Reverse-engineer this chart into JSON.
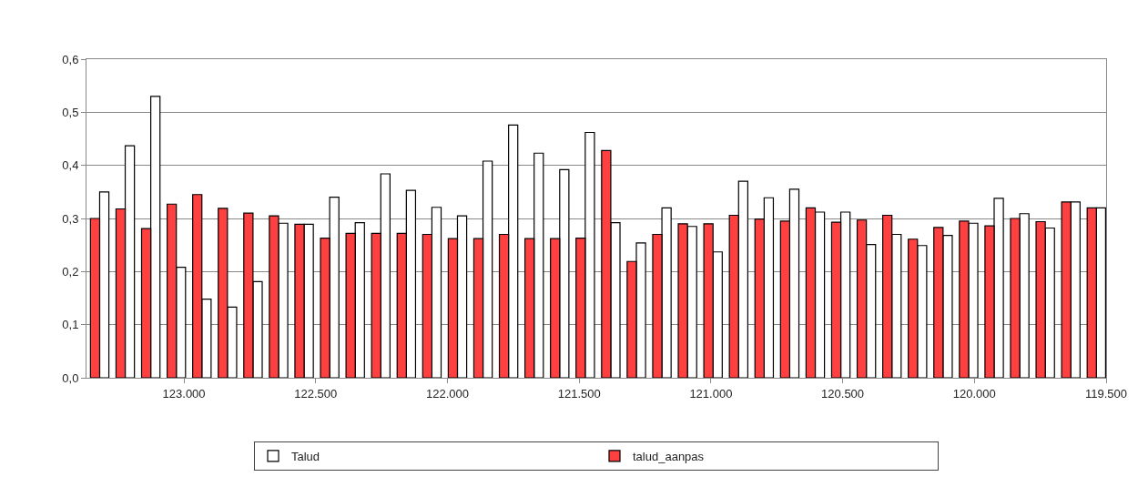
{
  "chart_data": {
    "type": "bar",
    "x": [
      123320,
      123223,
      123126,
      123029,
      122932,
      122835,
      122738,
      122641,
      122544,
      122447,
      122350,
      122253,
      122156,
      122059,
      121962,
      121865,
      121768,
      121671,
      121574,
      121477,
      121380,
      121283,
      121186,
      121089,
      120992,
      120895,
      120798,
      120701,
      120604,
      120507,
      120410,
      120313,
      120216,
      120119,
      120022,
      119925,
      119828,
      119731,
      119634,
      119537
    ],
    "series": [
      {
        "name": "Talud",
        "color": "#ffffff",
        "values": [
          0.35,
          0.437,
          0.53,
          0.208,
          0.148,
          0.133,
          0.181,
          0.291,
          0.289,
          0.34,
          0.292,
          0.384,
          0.353,
          0.321,
          0.305,
          0.408,
          0.476,
          0.423,
          0.392,
          0.462,
          0.292,
          0.254,
          0.32,
          0.285,
          0.237,
          0.37,
          0.339,
          0.355,
          0.312,
          0.312,
          0.251,
          0.27,
          0.249,
          0.268,
          0.291,
          0.338,
          0.309,
          0.282,
          0.331,
          0.32
        ]
      },
      {
        "name": "talud_aanpas",
        "color": "#ff4040",
        "values": [
          0.3,
          0.318,
          0.281,
          0.327,
          0.345,
          0.319,
          0.31,
          0.305,
          0.289,
          0.263,
          0.272,
          0.272,
          0.272,
          0.27,
          0.262,
          0.262,
          0.27,
          0.262,
          0.262,
          0.263,
          0.428,
          0.219,
          0.27,
          0.29,
          0.29,
          0.306,
          0.299,
          0.295,
          0.32,
          0.293,
          0.297,
          0.306,
          0.261,
          0.283,
          0.295,
          0.286,
          0.3,
          0.294,
          0.331,
          0.32
        ]
      }
    ],
    "xlim": [
      123370,
      119500
    ],
    "xticks": [
      {
        "value": 123000,
        "label": "123.000"
      },
      {
        "value": 122500,
        "label": "122.500"
      },
      {
        "value": 122000,
        "label": "122.000"
      },
      {
        "value": 121500,
        "label": "121.500"
      },
      {
        "value": 121000,
        "label": "121.000"
      },
      {
        "value": 120500,
        "label": "120.500"
      },
      {
        "value": 120000,
        "label": "120.000"
      },
      {
        "value": 119500,
        "label": "119.500"
      }
    ],
    "ylim": [
      0,
      0.6
    ],
    "yticks": [
      {
        "value": 0,
        "label": "0,0"
      },
      {
        "value": 0.1,
        "label": "0,1"
      },
      {
        "value": 0.2,
        "label": "0,2"
      },
      {
        "value": 0.3,
        "label": "0,3"
      },
      {
        "value": 0.4,
        "label": "0,4"
      },
      {
        "value": 0.5,
        "label": "0,5"
      },
      {
        "value": 0.6,
        "label": "0,6"
      }
    ],
    "grid": "y",
    "legend": "bottom"
  }
}
